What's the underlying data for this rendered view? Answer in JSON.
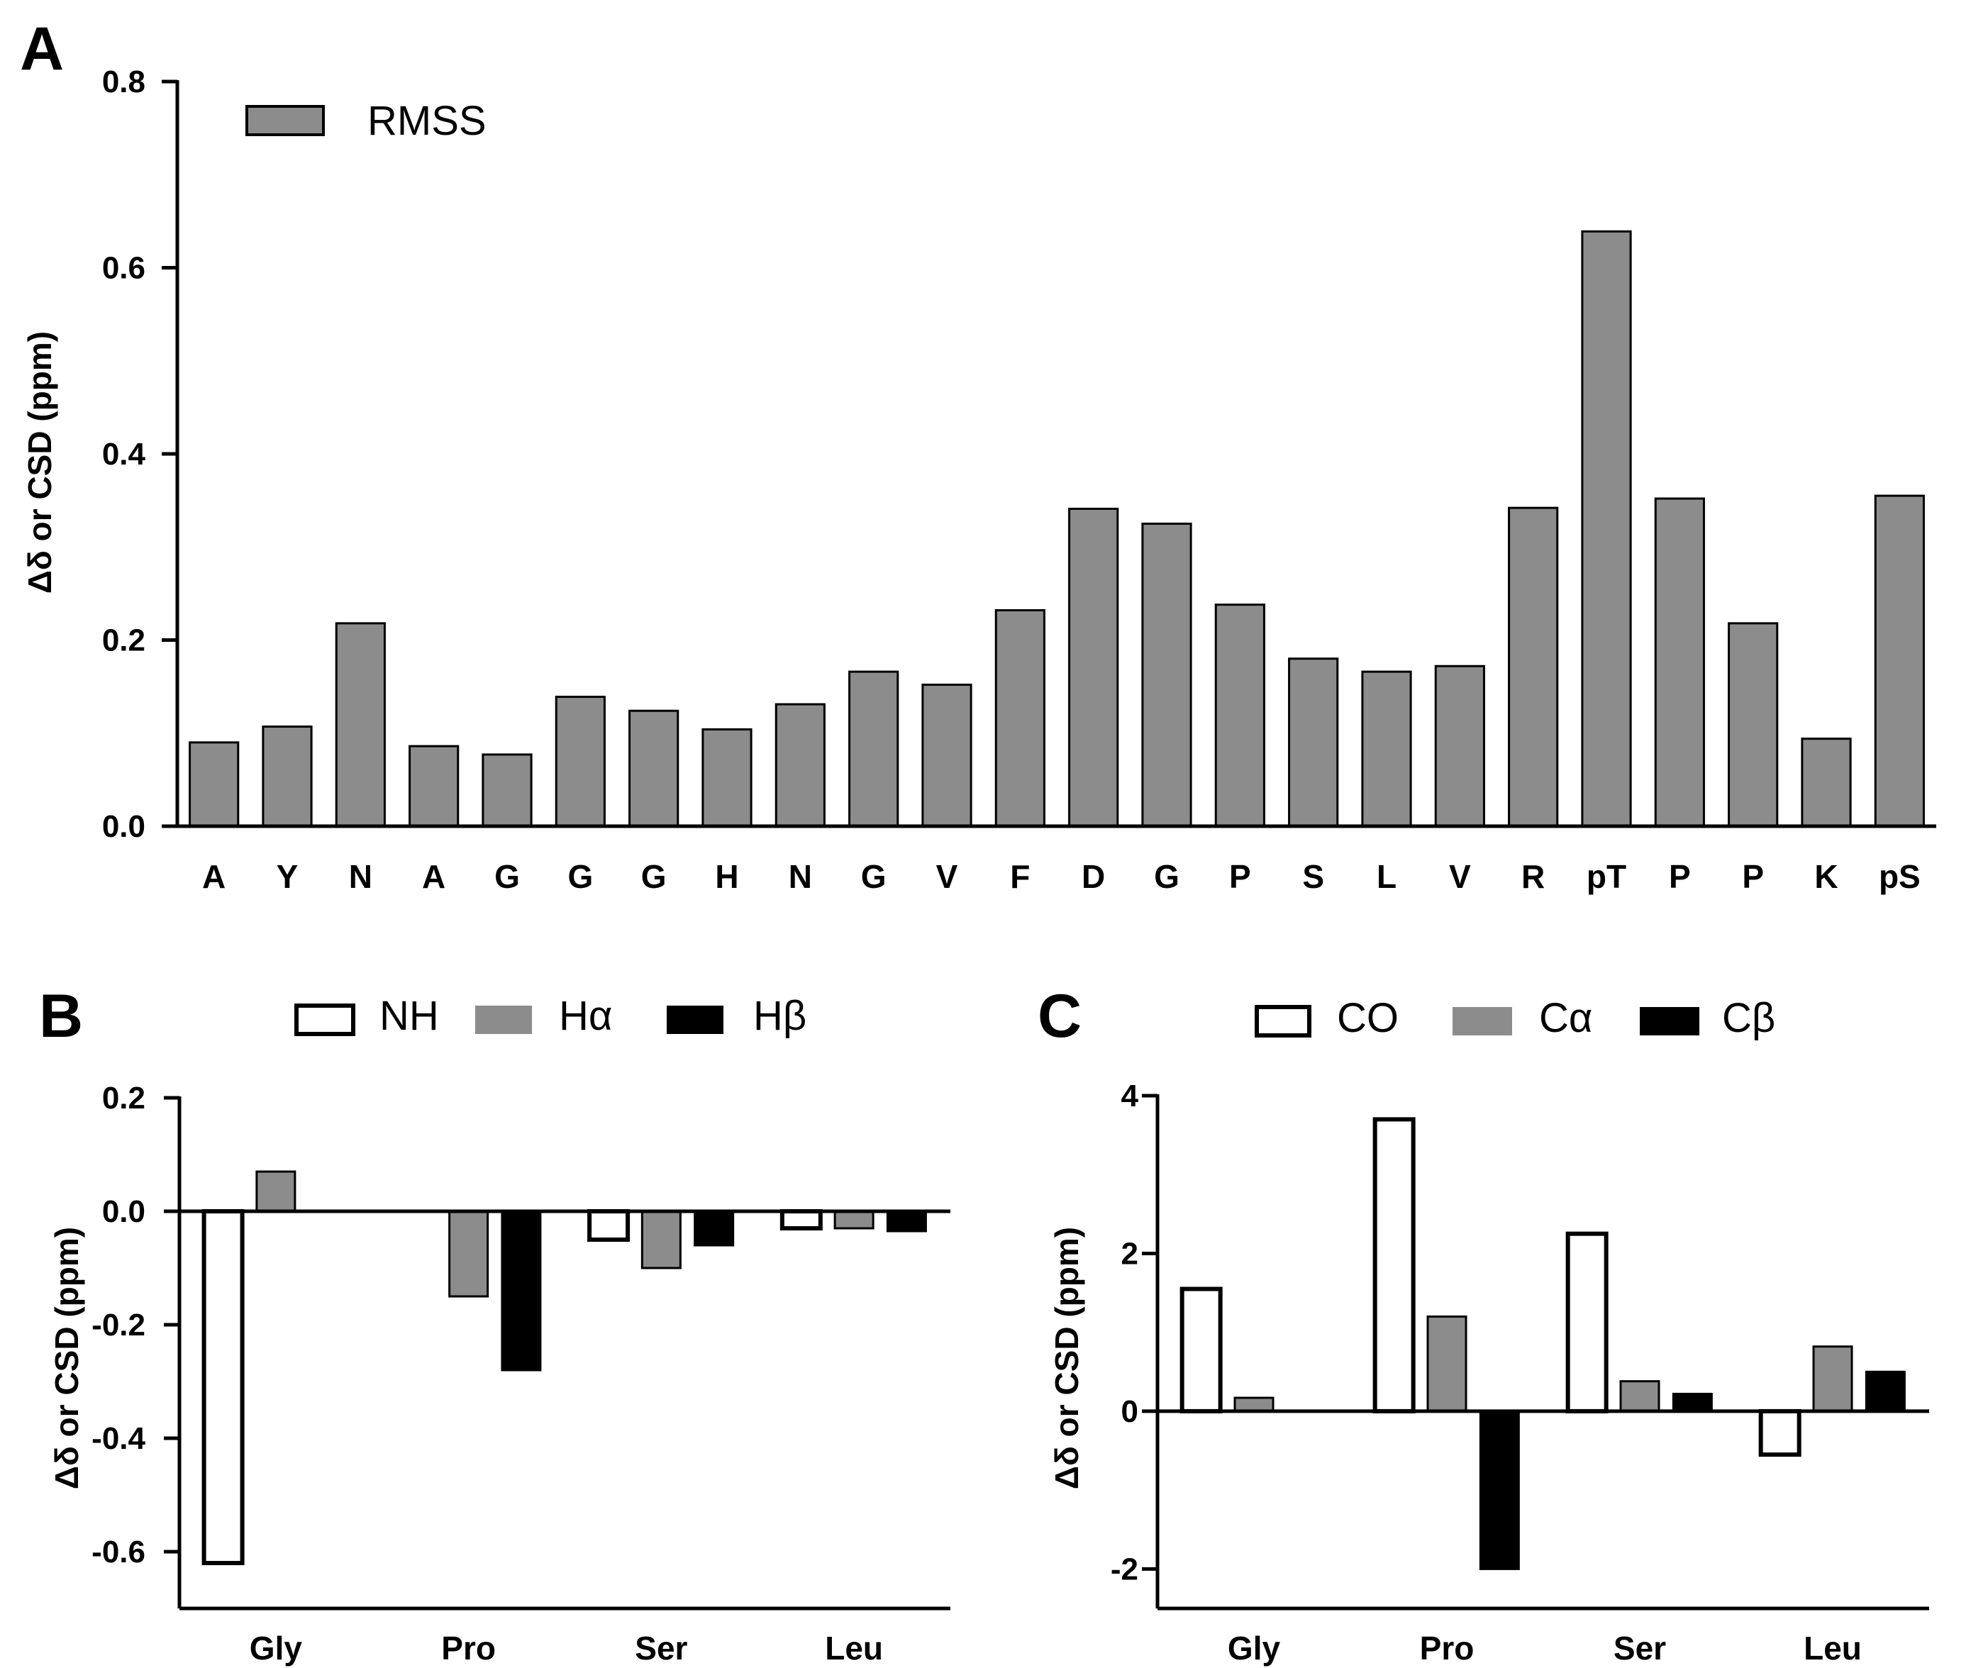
{
  "colors": {
    "gray": "#8c8c8c",
    "black": "#000000",
    "white": "#ffffff",
    "outline": "#000000"
  },
  "chart_data": [
    {
      "id": "A",
      "type": "bar",
      "panel_label": "A",
      "ylabel": "Δδ or CSD (ppm)",
      "xlabel": "",
      "ylim": [
        0,
        0.8
      ],
      "yticks": [
        0,
        0.2,
        0.4,
        0.6,
        0.8
      ],
      "ytick_labels": [
        "0.0",
        "0.2",
        "0.4",
        "0.6",
        "0.8"
      ],
      "legend_position": "top-left",
      "categories": [
        "A",
        "Y",
        "N",
        "A",
        "G",
        "G",
        "G",
        "H",
        "N",
        "G",
        "V",
        "F",
        "D",
        "G",
        "P",
        "S",
        "L",
        "V",
        "R",
        "pT",
        "P",
        "P",
        "K",
        "pS"
      ],
      "series": [
        {
          "name": "RMSS",
          "style": "gray",
          "values": [
            0.09,
            0.107,
            0.218,
            0.086,
            0.077,
            0.139,
            0.124,
            0.104,
            0.131,
            0.166,
            0.152,
            0.232,
            0.341,
            0.325,
            0.238,
            0.18,
            0.166,
            0.172,
            0.342,
            0.639,
            0.352,
            0.218,
            0.094,
            0.355
          ]
        }
      ]
    },
    {
      "id": "B",
      "type": "bar",
      "panel_label": "B",
      "ylabel": "Δδ or CSD (ppm)",
      "xlabel": "",
      "ylim": [
        -0.7,
        0.2
      ],
      "yticks": [
        -0.6,
        -0.4,
        -0.2,
        0.0,
        0.2
      ],
      "ytick_labels": [
        "-0.6",
        "-0.4",
        "-0.2",
        "0.0",
        "0.2"
      ],
      "legend_position": "top",
      "categories": [
        "Gly",
        "Pro",
        "Ser",
        "Leu"
      ],
      "series": [
        {
          "name": "NH",
          "style": "white",
          "values": [
            -0.62,
            null,
            -0.05,
            -0.03
          ]
        },
        {
          "name": "Hα",
          "style": "gray",
          "values": [
            0.07,
            -0.15,
            -0.1,
            -0.03
          ]
        },
        {
          "name": "Hβ",
          "style": "black",
          "values": [
            null,
            -0.28,
            -0.06,
            -0.035
          ]
        }
      ]
    },
    {
      "id": "C",
      "type": "bar",
      "panel_label": "C",
      "ylabel": "Δδ or CSD (ppm)",
      "xlabel": "",
      "ylim": [
        -2.5,
        4
      ],
      "yticks": [
        -2,
        0,
        2,
        4
      ],
      "ytick_labels": [
        "-2",
        "0",
        "2",
        "4"
      ],
      "legend_position": "top",
      "categories": [
        "Gly",
        "Pro",
        "Ser",
        "Leu"
      ],
      "series": [
        {
          "name": "CO",
          "style": "white",
          "values": [
            1.55,
            3.7,
            2.25,
            -0.55
          ]
        },
        {
          "name": "Cα",
          "style": "gray",
          "values": [
            0.17,
            1.2,
            0.38,
            0.82
          ]
        },
        {
          "name": "Cβ",
          "style": "black",
          "values": [
            null,
            -2.0,
            0.22,
            0.5
          ]
        }
      ]
    }
  ]
}
